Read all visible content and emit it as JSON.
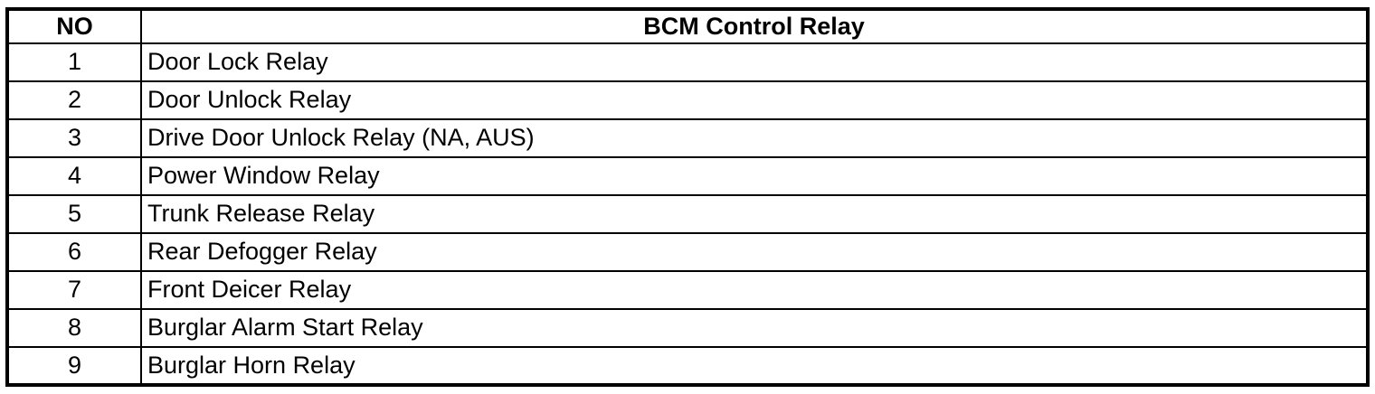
{
  "table": {
    "header": {
      "no": "NO",
      "title": "BCM Control Relay"
    },
    "rows": [
      {
        "no": "1",
        "label": "Door Lock Relay"
      },
      {
        "no": "2",
        "label": "Door Unlock Relay"
      },
      {
        "no": "3",
        "label": "Drive Door Unlock Relay (NA, AUS)"
      },
      {
        "no": "4",
        "label": "Power Window Relay"
      },
      {
        "no": "5",
        "label": "Trunk Release Relay"
      },
      {
        "no": "6",
        "label": "Rear Defogger Relay"
      },
      {
        "no": "7",
        "label": "Front Deicer Relay"
      },
      {
        "no": "8",
        "label": "Burglar Alarm Start Relay"
      },
      {
        "no": "9",
        "label": "Burglar Horn Relay"
      }
    ],
    "colors": {
      "border": "#000000",
      "text": "#000000",
      "background": "#ffffff"
    }
  }
}
